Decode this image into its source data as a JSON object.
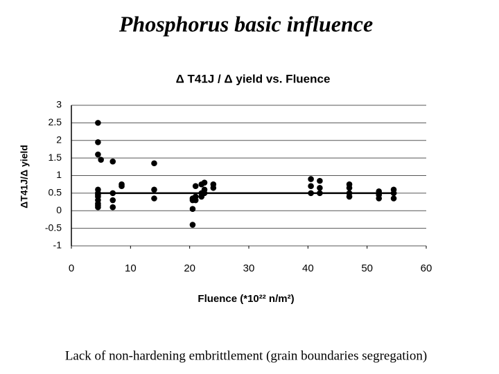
{
  "slide_title": "Phosphorus basic influence",
  "chart_data": {
    "type": "scatter",
    "title": "Δ T41J / Δ yield vs. Fluence",
    "x_label": "Fluence (*10²² n/m²)",
    "y_label": "ΔT41J/Δ yield",
    "xlim": [
      0,
      60
    ],
    "xticks": [
      0,
      10,
      20,
      30,
      40,
      50,
      60
    ],
    "ylim": [
      -1,
      3
    ],
    "yticks": [
      -1,
      -0.5,
      0,
      0.5,
      1,
      1.5,
      2,
      2.5,
      3
    ],
    "grid": true,
    "color": "#000000",
    "x": [
      4.5,
      4.5,
      4.5,
      4.5,
      4.5,
      4.5,
      4.5,
      4.5,
      4.5,
      4.5,
      4.5,
      5,
      7,
      7,
      7,
      7,
      8.5,
      8.5,
      14,
      14,
      14,
      20.5,
      20.5,
      20.5,
      20.5,
      21,
      21,
      21,
      22,
      22,
      22,
      22.5,
      22.5,
      22.5,
      24,
      24,
      40.5,
      40.5,
      40.5,
      42,
      42,
      42,
      47,
      47,
      47,
      47,
      52,
      52,
      52,
      54.5,
      54.5,
      54.5
    ],
    "values": [
      2.5,
      1.95,
      1.6,
      0.6,
      0.5,
      0.4,
      0.3,
      0.2,
      0.15,
      0.1,
      0.45,
      1.45,
      1.4,
      0.5,
      0.3,
      0.1,
      0.75,
      0.7,
      1.35,
      0.6,
      0.35,
      -0.4,
      0.05,
      0.3,
      0.35,
      0.7,
      0.4,
      0.3,
      0.75,
      0.5,
      0.4,
      0.8,
      0.6,
      0.5,
      0.75,
      0.65,
      0.9,
      0.7,
      0.5,
      0.85,
      0.65,
      0.5,
      0.75,
      0.65,
      0.5,
      0.4,
      0.55,
      0.45,
      0.35,
      0.6,
      0.5,
      0.35
    ],
    "trend": {
      "x": [
        4.5,
        55
      ],
      "values": [
        0.5,
        0.5
      ]
    }
  },
  "caption": "Lack of non-hardening embrittlement (grain boundaries segregation)"
}
